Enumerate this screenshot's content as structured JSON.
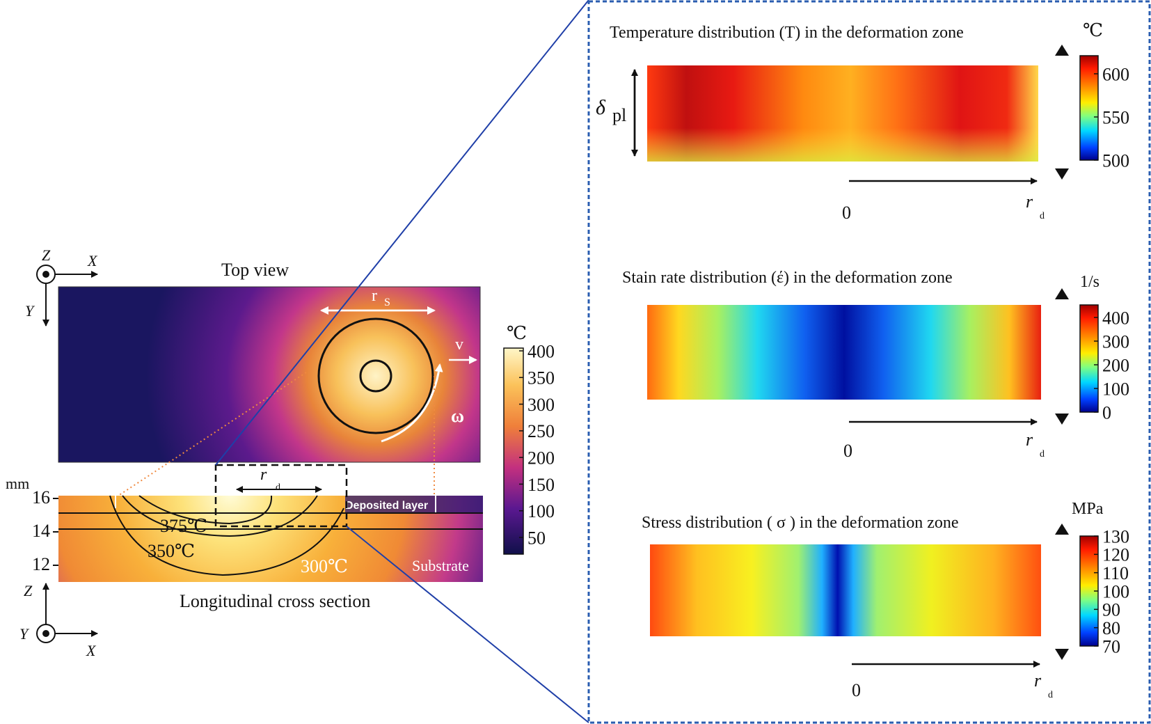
{
  "left": {
    "top_axes": {
      "z": "Z",
      "x": "X",
      "y": "Y"
    },
    "top_view_label": "Top view",
    "rs_label": "r",
    "rs_sub": "S",
    "v_label": "v",
    "omega_label": "ω",
    "rd_label": "r",
    "rd_sub": "d",
    "mm_label": "mm",
    "y_ticks": [
      "16",
      "14",
      "12"
    ],
    "contours": {
      "c375": "375℃",
      "c350": "350℃",
      "c300": "300℃"
    },
    "deposited_layer_label": "Deposited layer",
    "substrate_label": "Substrate",
    "cross_section_label": "Longitudinal cross section",
    "bottom_axes": {
      "z": "Z",
      "x": "X",
      "y": "Y"
    },
    "colorbar": {
      "unit": "℃",
      "ticks": [
        "400",
        "350",
        "300",
        "250",
        "200",
        "150",
        "100",
        "50"
      ]
    }
  },
  "panels": {
    "temperature": {
      "title": "Temperature distribution (T) in the deformation zone",
      "unit": "℃",
      "ticks": [
        "600",
        "550",
        "500"
      ],
      "delta_label": "δ",
      "delta_sub": "pl",
      "zero": "0",
      "rd": "r",
      "rd_sub": "d"
    },
    "strain": {
      "title": "Stain rate distribution (έ) in the deformation zone",
      "unit": "1/s",
      "ticks": [
        "400",
        "300",
        "200",
        "100",
        "0"
      ],
      "zero": "0",
      "rd": "r",
      "rd_sub": "d"
    },
    "stress": {
      "title": "Stress distribution ( σ ) in the deformation zone",
      "unit": "MPa",
      "ticks": [
        "130",
        "120",
        "110",
        "100",
        "90",
        "80",
        "70"
      ],
      "zero": "0",
      "rd": "r",
      "rd_sub": "d"
    }
  },
  "colors": {
    "zoom_lines": "#1f3fa8",
    "dashed_box": "#2a5db0",
    "plasma_dark": "#14145a",
    "hot": "#d01010"
  }
}
